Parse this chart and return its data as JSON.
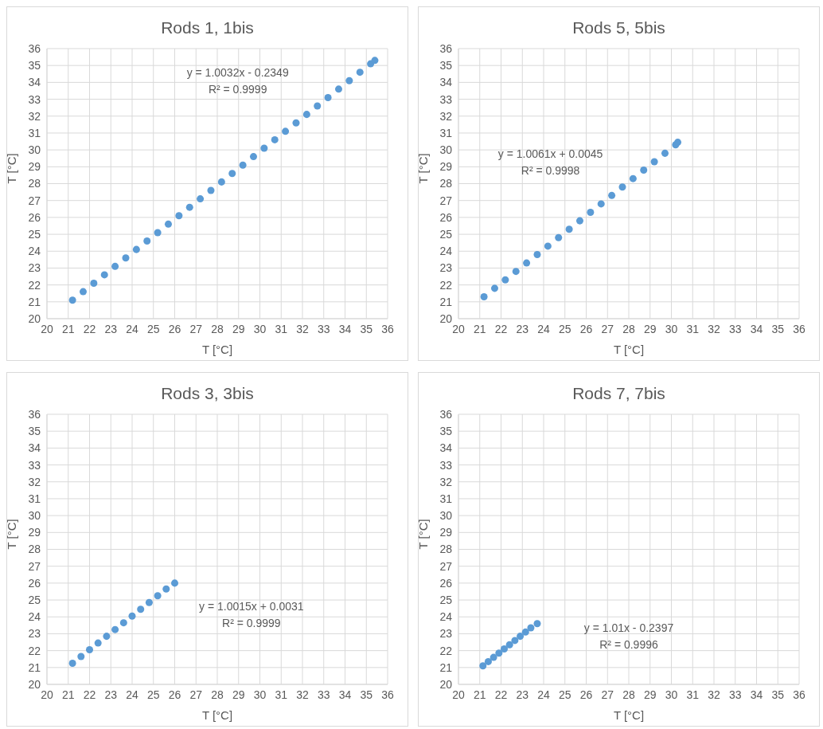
{
  "chart_data": [
    {
      "type": "scatter",
      "title": "Rods 1, 1bis",
      "xlabel": "T [°C]",
      "ylabel": "T [°C]",
      "color": "#5b9bd5",
      "marker": "circle",
      "grid": true,
      "xlim": [
        20,
        36
      ],
      "ylim": [
        20,
        36
      ],
      "xticks": [
        20,
        21,
        22,
        23,
        24,
        25,
        26,
        27,
        28,
        29,
        30,
        31,
        32,
        33,
        34,
        35,
        36
      ],
      "yticks": [
        20,
        21,
        22,
        23,
        24,
        25,
        26,
        27,
        28,
        29,
        30,
        31,
        32,
        33,
        34,
        35,
        36
      ],
      "annotations": [
        "y = 1.0032x - 0.2349",
        "R² = 0.9999"
      ],
      "x": [
        21.2,
        21.7,
        22.2,
        22.7,
        23.2,
        23.7,
        24.2,
        24.7,
        25.2,
        25.7,
        26.2,
        26.7,
        27.2,
        27.7,
        28.2,
        28.7,
        29.2,
        29.7,
        30.2,
        30.7,
        31.2,
        31.7,
        32.2,
        32.7,
        33.2,
        33.7,
        34.2,
        34.7,
        35.2,
        35.4
      ],
      "values": [
        21.1,
        21.6,
        22.1,
        22.6,
        23.1,
        23.6,
        24.1,
        24.6,
        25.1,
        25.6,
        26.1,
        26.6,
        27.1,
        27.6,
        28.1,
        28.6,
        29.1,
        29.6,
        30.1,
        30.6,
        31.1,
        31.6,
        32.1,
        32.6,
        33.1,
        33.6,
        34.1,
        34.6,
        35.1,
        35.3
      ]
    },
    {
      "type": "scatter",
      "title": "Rods 5, 5bis",
      "xlabel": "T [°C]",
      "ylabel": "T [°C]",
      "color": "#5b9bd5",
      "marker": "circle",
      "grid": true,
      "xlim": [
        20,
        36
      ],
      "ylim": [
        20,
        36
      ],
      "xticks": [
        20,
        21,
        22,
        23,
        24,
        25,
        26,
        27,
        28,
        29,
        30,
        31,
        32,
        33,
        34,
        35,
        36
      ],
      "yticks": [
        20,
        21,
        22,
        23,
        24,
        25,
        26,
        27,
        28,
        29,
        30,
        31,
        32,
        33,
        34,
        35,
        36
      ],
      "annotations": [
        "y = 1.0061x + 0.0045",
        "R² = 0.9998"
      ],
      "x": [
        21.2,
        21.7,
        22.2,
        22.7,
        23.2,
        23.7,
        24.2,
        24.7,
        25.2,
        25.7,
        26.2,
        26.7,
        27.2,
        27.7,
        28.2,
        28.7,
        29.2,
        29.7,
        30.2,
        30.3
      ],
      "values": [
        21.3,
        21.8,
        22.3,
        22.8,
        23.3,
        23.8,
        24.3,
        24.8,
        25.3,
        25.8,
        26.3,
        26.8,
        27.3,
        27.8,
        28.3,
        28.8,
        29.3,
        29.8,
        30.3,
        30.45
      ]
    },
    {
      "type": "scatter",
      "title": "Rods 3, 3bis",
      "xlabel": "T [°C]",
      "ylabel": "T [°C]",
      "color": "#5b9bd5",
      "marker": "circle",
      "grid": true,
      "xlim": [
        20,
        36
      ],
      "ylim": [
        20,
        36
      ],
      "xticks": [
        20,
        21,
        22,
        23,
        24,
        25,
        26,
        27,
        28,
        29,
        30,
        31,
        32,
        33,
        34,
        35,
        36
      ],
      "yticks": [
        20,
        21,
        22,
        23,
        24,
        25,
        26,
        27,
        28,
        29,
        30,
        31,
        32,
        33,
        34,
        35,
        36
      ],
      "annotations": [
        "y = 1.0015x + 0.0031",
        "R² = 0.9999"
      ],
      "x": [
        21.2,
        21.6,
        22.0,
        22.4,
        22.8,
        23.2,
        23.6,
        24.0,
        24.4,
        24.8,
        25.2,
        25.6,
        26.0
      ],
      "values": [
        21.25,
        21.65,
        22.05,
        22.45,
        22.85,
        23.25,
        23.65,
        24.05,
        24.45,
        24.85,
        25.25,
        25.65,
        26.0
      ]
    },
    {
      "type": "scatter",
      "title": "Rods 7, 7bis",
      "xlabel": "T [°C]",
      "ylabel": "T [°C]",
      "color": "#5b9bd5",
      "marker": "circle",
      "grid": true,
      "xlim": [
        20,
        36
      ],
      "ylim": [
        20,
        36
      ],
      "xticks": [
        20,
        21,
        22,
        23,
        24,
        25,
        26,
        27,
        28,
        29,
        30,
        31,
        32,
        33,
        34,
        35,
        36
      ],
      "yticks": [
        20,
        21,
        22,
        23,
        24,
        25,
        26,
        27,
        28,
        29,
        30,
        31,
        32,
        33,
        34,
        35,
        36
      ],
      "annotations": [
        "y = 1.01x - 0.2397",
        "R² = 0.9996"
      ],
      "x": [
        21.15,
        21.4,
        21.65,
        21.9,
        22.15,
        22.4,
        22.65,
        22.9,
        23.15,
        23.4,
        23.7
      ],
      "values": [
        21.1,
        21.35,
        21.6,
        21.85,
        22.1,
        22.35,
        22.6,
        22.85,
        23.1,
        23.35,
        23.6
      ]
    }
  ]
}
